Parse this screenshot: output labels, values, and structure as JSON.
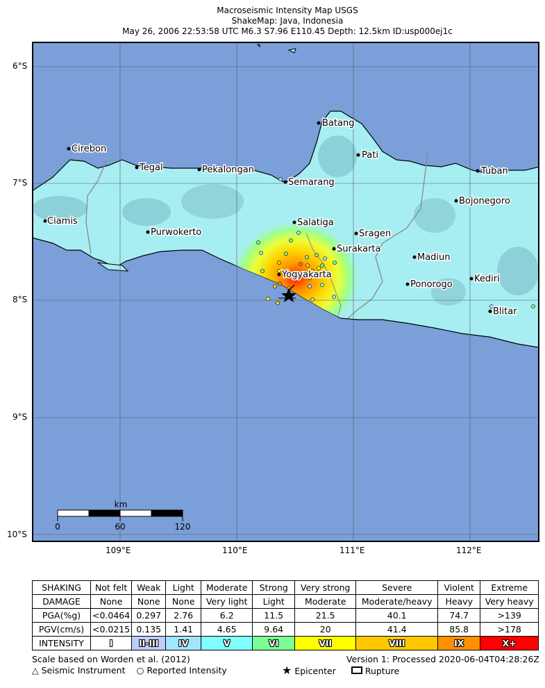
{
  "title": {
    "line1": "Macroseismic Intensity Map USGS",
    "line2": "ShakeMap: Java, Indonesia",
    "line3": "May 26, 2006 22:53:58 UTC M6.3 S7.96 E110.45 Depth: 12.5km ID:usp000ej1c"
  },
  "map": {
    "lat_labels": [
      "6°S",
      "7°S",
      "8°S",
      "9°S",
      "10°S"
    ],
    "lon_labels": [
      "109°E",
      "110°E",
      "111°E",
      "112°E"
    ],
    "scale_bar": {
      "unit": "km",
      "ticks": [
        "0",
        "60",
        "120"
      ]
    },
    "cities": [
      {
        "name": "Batang"
      },
      {
        "name": "Cirebon"
      },
      {
        "name": "Pati"
      },
      {
        "name": "Tegal"
      },
      {
        "name": "Pekalongan"
      },
      {
        "name": "Tuban"
      },
      {
        "name": "Semarang"
      },
      {
        "name": "Bojonegoro"
      },
      {
        "name": "Ciamis"
      },
      {
        "name": "Salatiga"
      },
      {
        "name": "Purwokerto"
      },
      {
        "name": "Sragen"
      },
      {
        "name": "Surakarta"
      },
      {
        "name": "Madiun"
      },
      {
        "name": "Yogyakarta"
      },
      {
        "name": "Kediri"
      },
      {
        "name": "Ponorogo"
      },
      {
        "name": "Blitar"
      }
    ],
    "colors": {
      "ocean": "#7b9fd9",
      "land": "#a7eef2"
    }
  },
  "legend": {
    "rows": [
      {
        "label": "SHAKING",
        "values": [
          "Not felt",
          "Weak",
          "Light",
          "Moderate",
          "Strong",
          "Very strong",
          "Severe",
          "Violent",
          "Extreme"
        ]
      },
      {
        "label": "DAMAGE",
        "values": [
          "None",
          "None",
          "None",
          "Very light",
          "Light",
          "Moderate",
          "Moderate/heavy",
          "Heavy",
          "Very heavy"
        ]
      },
      {
        "label": "PGA(%g)",
        "values": [
          "<0.0464",
          "0.297",
          "2.76",
          "6.2",
          "11.5",
          "21.5",
          "40.1",
          "74.7",
          ">139"
        ]
      },
      {
        "label": "PGV(cm/s)",
        "values": [
          "<0.0215",
          "0.135",
          "1.41",
          "4.65",
          "9.64",
          "20",
          "41.4",
          "85.8",
          ">178"
        ]
      }
    ],
    "intensity": {
      "label": "INTENSITY",
      "values": [
        "I",
        "II-III",
        "IV",
        "V",
        "VI",
        "VII",
        "VIII",
        "IX",
        "X+"
      ],
      "colors": [
        "#ffffff",
        "#bfccff",
        "#a0e6ff",
        "#80ffff",
        "#7aff93",
        "#ffff00",
        "#ffc800",
        "#ff9100",
        "#ff0000"
      ]
    }
  },
  "footer": {
    "scale_note": "Scale based on Worden et al. (2012)",
    "version": "Version 1: Processed 2020-06-04T04:28:26Z",
    "seismic_instrument": "Seismic Instrument",
    "reported_intensity": "Reported Intensity",
    "epicenter": "Epicenter",
    "rupture": "Rupture"
  }
}
